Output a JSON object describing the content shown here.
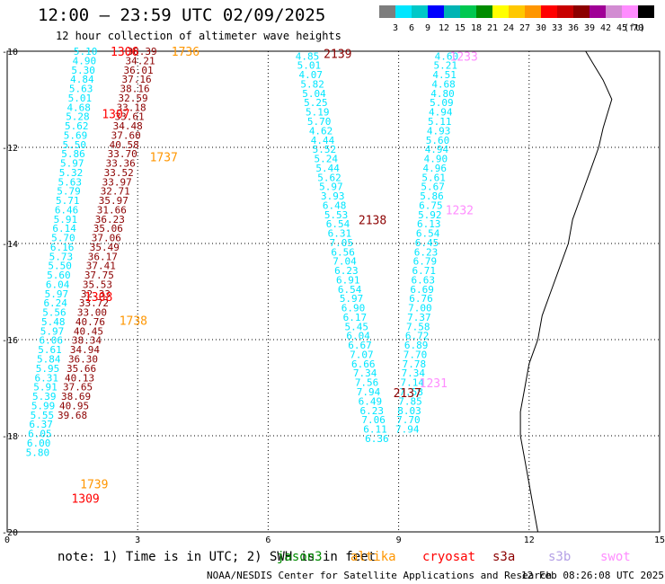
{
  "header": {
    "title": "12:00 – 23:59 UTC 02/09/2025",
    "subtitle": "12 hour collection of altimeter wave heights"
  },
  "legend": {
    "colors": [
      "#7d7d7d",
      "#00e6ff",
      "#00c8c8",
      "#0000ff",
      "#00b4b4",
      "#00c850",
      "#008c00",
      "#ffff00",
      "#ffc800",
      "#ff9600",
      "#ff0000",
      "#c80000",
      "#8c0000",
      "#a00096",
      "#d28cd2",
      "#ff8cff",
      "#000000"
    ],
    "labels": [
      "3",
      "6",
      "9",
      "12",
      "15",
      "18",
      "21",
      "24",
      "27",
      "30",
      "33",
      "36",
      "39",
      "42",
      "45",
      "70",
      "(ft)"
    ]
  },
  "footer": {
    "note": "note: 1) Time is in UTC; 2) SWH is in feet",
    "satellites": [
      {
        "name": "jason3",
        "color": "#008c00"
      },
      {
        "name": "altika",
        "color": "#ff9600"
      },
      {
        "name": "cryosat",
        "color": "#ff0000"
      },
      {
        "name": "s3a",
        "color": "#8c0000"
      },
      {
        "name": "s3b",
        "color": "#b4a0e6"
      },
      {
        "name": "swot",
        "color": "#ff8cff"
      }
    ],
    "credit": "NOAA/NESDIS Center for Satellite Applications and Research",
    "timestamp": "12 Feb 08:26:08 UTC 2025"
  },
  "axes": {
    "x_ticks": [
      {
        "v": 0,
        "label": "0"
      },
      {
        "v": 3,
        "label": "3"
      },
      {
        "v": 6,
        "label": "6"
      },
      {
        "v": 9,
        "label": "9"
      },
      {
        "v": 12,
        "label": "12"
      },
      {
        "v": 15,
        "label": "15"
      }
    ],
    "y_ticks": [
      {
        "v": -10,
        "label": "-10"
      },
      {
        "v": -12,
        "label": "-12"
      },
      {
        "v": -14,
        "label": "-14"
      },
      {
        "v": -16,
        "label": "-16"
      },
      {
        "v": -18,
        "label": "-18"
      },
      {
        "v": -20,
        "label": "-20"
      }
    ],
    "x_range": [
      0,
      15
    ],
    "y_range": [
      -20,
      -10
    ]
  },
  "coastline": [
    [
      13.3,
      -10
    ],
    [
      13.5,
      -10.3
    ],
    [
      13.7,
      -10.6
    ],
    [
      13.9,
      -11
    ],
    [
      13.8,
      -11.3
    ],
    [
      13.7,
      -11.6
    ],
    [
      13.6,
      -12
    ],
    [
      13.4,
      -12.5
    ],
    [
      13.2,
      -13
    ],
    [
      13.0,
      -13.5
    ],
    [
      12.9,
      -14
    ],
    [
      12.7,
      -14.5
    ],
    [
      12.5,
      -15
    ],
    [
      12.3,
      -15.5
    ],
    [
      12.2,
      -16
    ],
    [
      12.0,
      -16.5
    ],
    [
      11.9,
      -17
    ],
    [
      11.8,
      -17.5
    ],
    [
      11.8,
      -18
    ],
    [
      11.9,
      -18.5
    ],
    [
      12.0,
      -19
    ],
    [
      12.1,
      -19.5
    ],
    [
      12.2,
      -20
    ]
  ],
  "track_labels": [
    {
      "x": 2.7,
      "y": -10.0,
      "text": "1306",
      "color": "#ff0000"
    },
    {
      "x": 4.1,
      "y": -10.0,
      "text": "1736",
      "color": "#ff9600"
    },
    {
      "x": 2.5,
      "y": -11.3,
      "text": "1307",
      "color": "#ff0000"
    },
    {
      "x": 3.6,
      "y": -12.2,
      "text": "1737",
      "color": "#ff9600"
    },
    {
      "x": 2.1,
      "y": -15.1,
      "text": "1308",
      "color": "#ff0000"
    },
    {
      "x": 2.9,
      "y": -15.6,
      "text": "1738",
      "color": "#ff9600"
    },
    {
      "x": 1.8,
      "y": -19.3,
      "text": "1309",
      "color": "#ff0000"
    },
    {
      "x": 2.0,
      "y": -19.0,
      "text": "1739",
      "color": "#ff9600"
    },
    {
      "x": 7.6,
      "y": -10.05,
      "text": "2139",
      "color": "#8c0000"
    },
    {
      "x": 8.4,
      "y": -13.5,
      "text": "2138",
      "color": "#8c0000"
    },
    {
      "x": 9.2,
      "y": -17.1,
      "text": "2137",
      "color": "#8c0000"
    },
    {
      "x": 10.5,
      "y": -10.1,
      "text": "1233",
      "color": "#ff8cff"
    },
    {
      "x": 10.4,
      "y": -13.3,
      "text": "1232",
      "color": "#ff8cff"
    },
    {
      "x": 9.8,
      "y": -16.9,
      "text": "1231",
      "color": "#ff8cff"
    }
  ],
  "tracks": [
    {
      "name": "cyan-west",
      "color": "#00e6ff",
      "x0": 1.8,
      "x1": 0.7,
      "y0": -10.0,
      "step": 0.194,
      "values": [
        "5.10",
        "4.90",
        "5.30",
        "4.84",
        "5.63",
        "5.01",
        "4.68",
        "5.28",
        "5.62",
        "5.69",
        "5.50",
        "5.86",
        "5.97",
        "5.32",
        "5.63",
        "5.79",
        "5.71",
        "6.46",
        "5.91",
        "6.14",
        "5.70",
        "6.16",
        "5.73",
        "5.50",
        "5.60",
        "6.04",
        "5.97",
        "6.24",
        "5.56",
        "5.48",
        "5.97",
        "6.06",
        "5.61",
        "5.84",
        "5.95",
        "6.31",
        "5.91",
        "5.39",
        "5.99",
        "5.55",
        "6.37",
        "6.05",
        "6.00",
        "5.80"
      ]
    },
    {
      "name": "darkred-west",
      "color": "#8c0000",
      "x0": 3.1,
      "x1": 1.5,
      "y0": -10.0,
      "step": 0.194,
      "values": [
        "38.39",
        "34.21",
        "36.01",
        "37.16",
        "38.16",
        "32.59",
        "33.18",
        "33.61",
        "34.48",
        "37.60",
        "40.58",
        "33.70",
        "33.36",
        "33.52",
        "33.97",
        "32.71",
        "35.97",
        "31.66",
        "36.23",
        "35.06",
        "37.06",
        "35.49",
        "36.17",
        "37.41",
        "37.75",
        "35.53",
        "32.33",
        "33.72",
        "33.00",
        "40.76",
        "40.45",
        "38.34",
        "34.94",
        "36.30",
        "35.66",
        "40.13",
        "37.65",
        "38.69",
        "40.95",
        "39.68"
      ]
    },
    {
      "name": "cyan-mid",
      "color": "#00e6ff",
      "x0": 6.9,
      "x1": 8.5,
      "y0": -10.1,
      "step": 0.194,
      "values": [
        "4.85",
        "5.01",
        "4.07",
        "5.82",
        "5.04",
        "5.25",
        "5.19",
        "5.70",
        "4.62",
        "4.44",
        "5.52",
        "5.24",
        "5.44",
        "5.62",
        "5.97",
        "3.93",
        "6.48",
        "5.53",
        "6.54",
        "6.31",
        "7.05",
        "6.56",
        "7.04",
        "6.23",
        "6.91",
        "6.54",
        "5.97",
        "6.90",
        "6.17",
        "5.45",
        "6.04",
        "6.67",
        "7.07",
        "6.66",
        "7.34",
        "7.56",
        "7.94",
        "6.49",
        "6.23",
        "7.06",
        "6.11",
        "6.36"
      ]
    },
    {
      "name": "cyan-east",
      "color": "#00e6ff",
      "x0": 10.1,
      "x1": 9.2,
      "y0": -10.1,
      "step": 0.194,
      "values": [
        "4.60",
        "5.21",
        "4.51",
        "4.68",
        "4.80",
        "5.09",
        "4.94",
        "5.11",
        "4.93",
        "5.60",
        "4.94",
        "4.90",
        "4.96",
        "5.61",
        "5.67",
        "5.86",
        "6.75",
        "5.92",
        "6.13",
        "6.54",
        "6.45",
        "6.23",
        "6.79",
        "6.71",
        "6.63",
        "6.69",
        "6.76",
        "7.00",
        "7.37",
        "7.58",
        "6.72",
        "6.89",
        "7.70",
        "7.78",
        "7.34",
        "7.14",
        "7.58",
        "7.85",
        "8.03",
        "7.70",
        "7.94"
      ]
    }
  ]
}
